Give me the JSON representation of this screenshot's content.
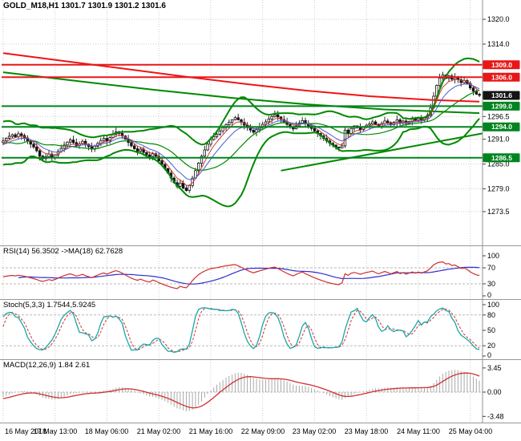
{
  "window": {
    "symbol_ohlc_label": "GOLD_M18,H1 1301.7 1301.9 1301.2 1301.6"
  },
  "chart_data": {
    "type": "candlestick",
    "symbol": "GOLD_M18",
    "timeframe": "H1",
    "ohlc": {
      "open": 1301.7,
      "high": 1301.9,
      "low": 1301.2,
      "close": 1301.6
    },
    "x_axis": {
      "labels": [
        "16 May 2018",
        "17 May 13:00",
        "18 May 06:00",
        "21 May 02:00",
        "21 May 16:00",
        "22 May 09:00",
        "23 May 02:00",
        "23 May 18:00",
        "24 May 11:00",
        "25 May 04:00"
      ],
      "indices": [
        0,
        17,
        34,
        51,
        68,
        85,
        102,
        119,
        136,
        153
      ]
    },
    "price_axis": {
      "range_top": 1323.5,
      "range_bottom": 1266.5,
      "plain_ticks": [
        "1320.0",
        "1314.0",
        "1296.5",
        "1291.0",
        "1285.0",
        "1279.0",
        "1273.5"
      ],
      "level_lines": [
        {
          "price": 1309.0,
          "label": "1309.0",
          "color": "#e81717"
        },
        {
          "price": 1306.0,
          "label": "1306.0",
          "color": "#e81717"
        },
        {
          "price": 1299.0,
          "label": "1299.0",
          "color": "#00841f"
        },
        {
          "price": 1294.0,
          "label": "1294.0",
          "color": "#00841f"
        },
        {
          "price": 1286.5,
          "label": "1286.5",
          "color": "#00841f"
        }
      ],
      "current_price": {
        "price": 1301.6,
        "label": "1301.6",
        "color": "#141414"
      }
    },
    "closes": [
      1290.6,
      1291.2,
      1291.7,
      1292.1,
      1291.6,
      1292.3,
      1291.9,
      1291.3,
      1290.6,
      1289.8,
      1289.1,
      1288.2,
      1286.9,
      1286.3,
      1286.8,
      1287.4,
      1286.6,
      1287.2,
      1288.0,
      1288.8,
      1289.6,
      1290.3,
      1290.8,
      1290.2,
      1289.5,
      1289.9,
      1290.5,
      1289.8,
      1289.2,
      1288.6,
      1289.3,
      1290.0,
      1290.7,
      1291.2,
      1290.6,
      1291.4,
      1292.2,
      1292.8,
      1292.4,
      1291.8,
      1291.0,
      1290.2,
      1289.4,
      1288.7,
      1288.1,
      1288.6,
      1287.8,
      1287.2,
      1286.8,
      1287.5,
      1286.9,
      1285.8,
      1284.9,
      1283.9,
      1282.8,
      1281.6,
      1280.5,
      1279.6,
      1280.4,
      1279.2,
      1278.6,
      1279.8,
      1281.6,
      1283.4,
      1285.2,
      1286.9,
      1288.4,
      1289.8,
      1290.9,
      1291.6,
      1292.2,
      1293.0,
      1293.8,
      1294.5,
      1295.1,
      1295.7,
      1296.2,
      1295.7,
      1295.1,
      1294.4,
      1293.8,
      1293.2,
      1292.7,
      1293.3,
      1294.0,
      1294.6,
      1295.2,
      1295.9,
      1296.5,
      1296.9,
      1296.4,
      1295.8,
      1295.2,
      1294.6,
      1294.0,
      1293.5,
      1294.2,
      1294.9,
      1295.5,
      1294.8,
      1294.2,
      1293.6,
      1293.0,
      1292.4,
      1291.8,
      1291.2,
      1290.6,
      1290.0,
      1289.6,
      1289.1,
      1288.9,
      1289.4,
      1293.2,
      1292.4,
      1293.6,
      1294.2,
      1293.8,
      1293.3,
      1293.9,
      1294.4,
      1294.7,
      1295.2,
      1294.6,
      1294.1,
      1294.8,
      1295.4,
      1295.0,
      1294.5,
      1295.1,
      1295.7,
      1294.9,
      1295.4,
      1294.8,
      1295.3,
      1295.9,
      1295.5,
      1296.0,
      1295.6,
      1296.2,
      1296.8,
      1298.6,
      1301.4,
      1304.0,
      1305.8,
      1306.5,
      1305.7,
      1306.3,
      1305.5,
      1306.1,
      1305.4,
      1304.7,
      1305.2,
      1304.5,
      1303.4,
      1302.6,
      1301.9,
      1301.6
    ],
    "lead_in_closes": [
      1295.2,
      1293.6,
      1291.4,
      1288.8,
      1286.4,
      1285.2,
      1286.6,
      1288.9,
      1291.3,
      1293.4,
      1294.6,
      1292.8,
      1290.1,
      1287.3,
      1285.6,
      1286.8,
      1289.2,
      1291.8,
      1294.0,
      1292.4,
      1289.9,
      1287.2,
      1285.8,
      1288.0,
      1290.9,
      1290.2
    ],
    "overlays": {
      "bollinger": {
        "period": 20,
        "deviation": 2,
        "color": "#008900"
      },
      "slow_ma_red": {
        "color": "#f01414",
        "points": [
          [
            0,
            1311.8
          ],
          [
            20,
            1309.9
          ],
          [
            40,
            1308.0
          ],
          [
            60,
            1306.1
          ],
          [
            80,
            1304.3
          ],
          [
            100,
            1302.7
          ],
          [
            120,
            1301.4
          ],
          [
            140,
            1300.5
          ],
          [
            156,
            1300.1
          ]
        ]
      },
      "slow_ma_green": {
        "color": "#008900",
        "points": [
          [
            0,
            1307.2
          ],
          [
            25,
            1305.0
          ],
          [
            50,
            1302.9
          ],
          [
            75,
            1301.0
          ],
          [
            100,
            1299.4
          ],
          [
            125,
            1298.2
          ],
          [
            156,
            1297.3
          ]
        ]
      },
      "trendline": {
        "color": "#008900",
        "points": [
          [
            91,
            1283.4
          ],
          [
            157,
            1292.4
          ]
        ]
      },
      "fast_ma_red": {
        "period": 5,
        "color": "#d43a3a"
      },
      "fast_ma_blue": {
        "period": 10,
        "color": "#4a5fd0"
      }
    },
    "panels": [
      {
        "id": "rsi",
        "label": "RSI(14) 56.3502 ->MA(18) 62.7628",
        "period": 14,
        "ma_period": 18,
        "range": [
          0,
          100
        ],
        "ticks": [
          "100",
          "70",
          "30",
          "0"
        ],
        "levels": [
          70,
          30
        ],
        "line_color": "#cf2e2e",
        "ma_color": "#2e2ecf"
      },
      {
        "id": "stoch",
        "label": "Stoch(5,3,3) 1.7544,5.9245",
        "params": [
          5,
          3,
          3
        ],
        "range": [
          0,
          100
        ],
        "ticks": [
          "100",
          "80",
          "50",
          "20",
          "0"
        ],
        "levels": [
          80,
          20
        ],
        "k_color": "#19a7a7",
        "d_color": "#d23030"
      },
      {
        "id": "macd",
        "label": "MACD(12,26,9) 1.84 2.61",
        "params": [
          12,
          26,
          9
        ],
        "range": [
          -3.9,
          3.9
        ],
        "ticks": [
          "3.45",
          "0.00",
          "-3.48"
        ],
        "levels": [
          0
        ],
        "hist_color": "#a9a9a9",
        "signal_color": "#d23030"
      }
    ],
    "grid_color": "#cdcdcd",
    "axis_color": "#8f8f8f",
    "candle": {
      "bull_fill": "#ffffff",
      "bear_fill": "#141414",
      "border": "#141414"
    }
  }
}
